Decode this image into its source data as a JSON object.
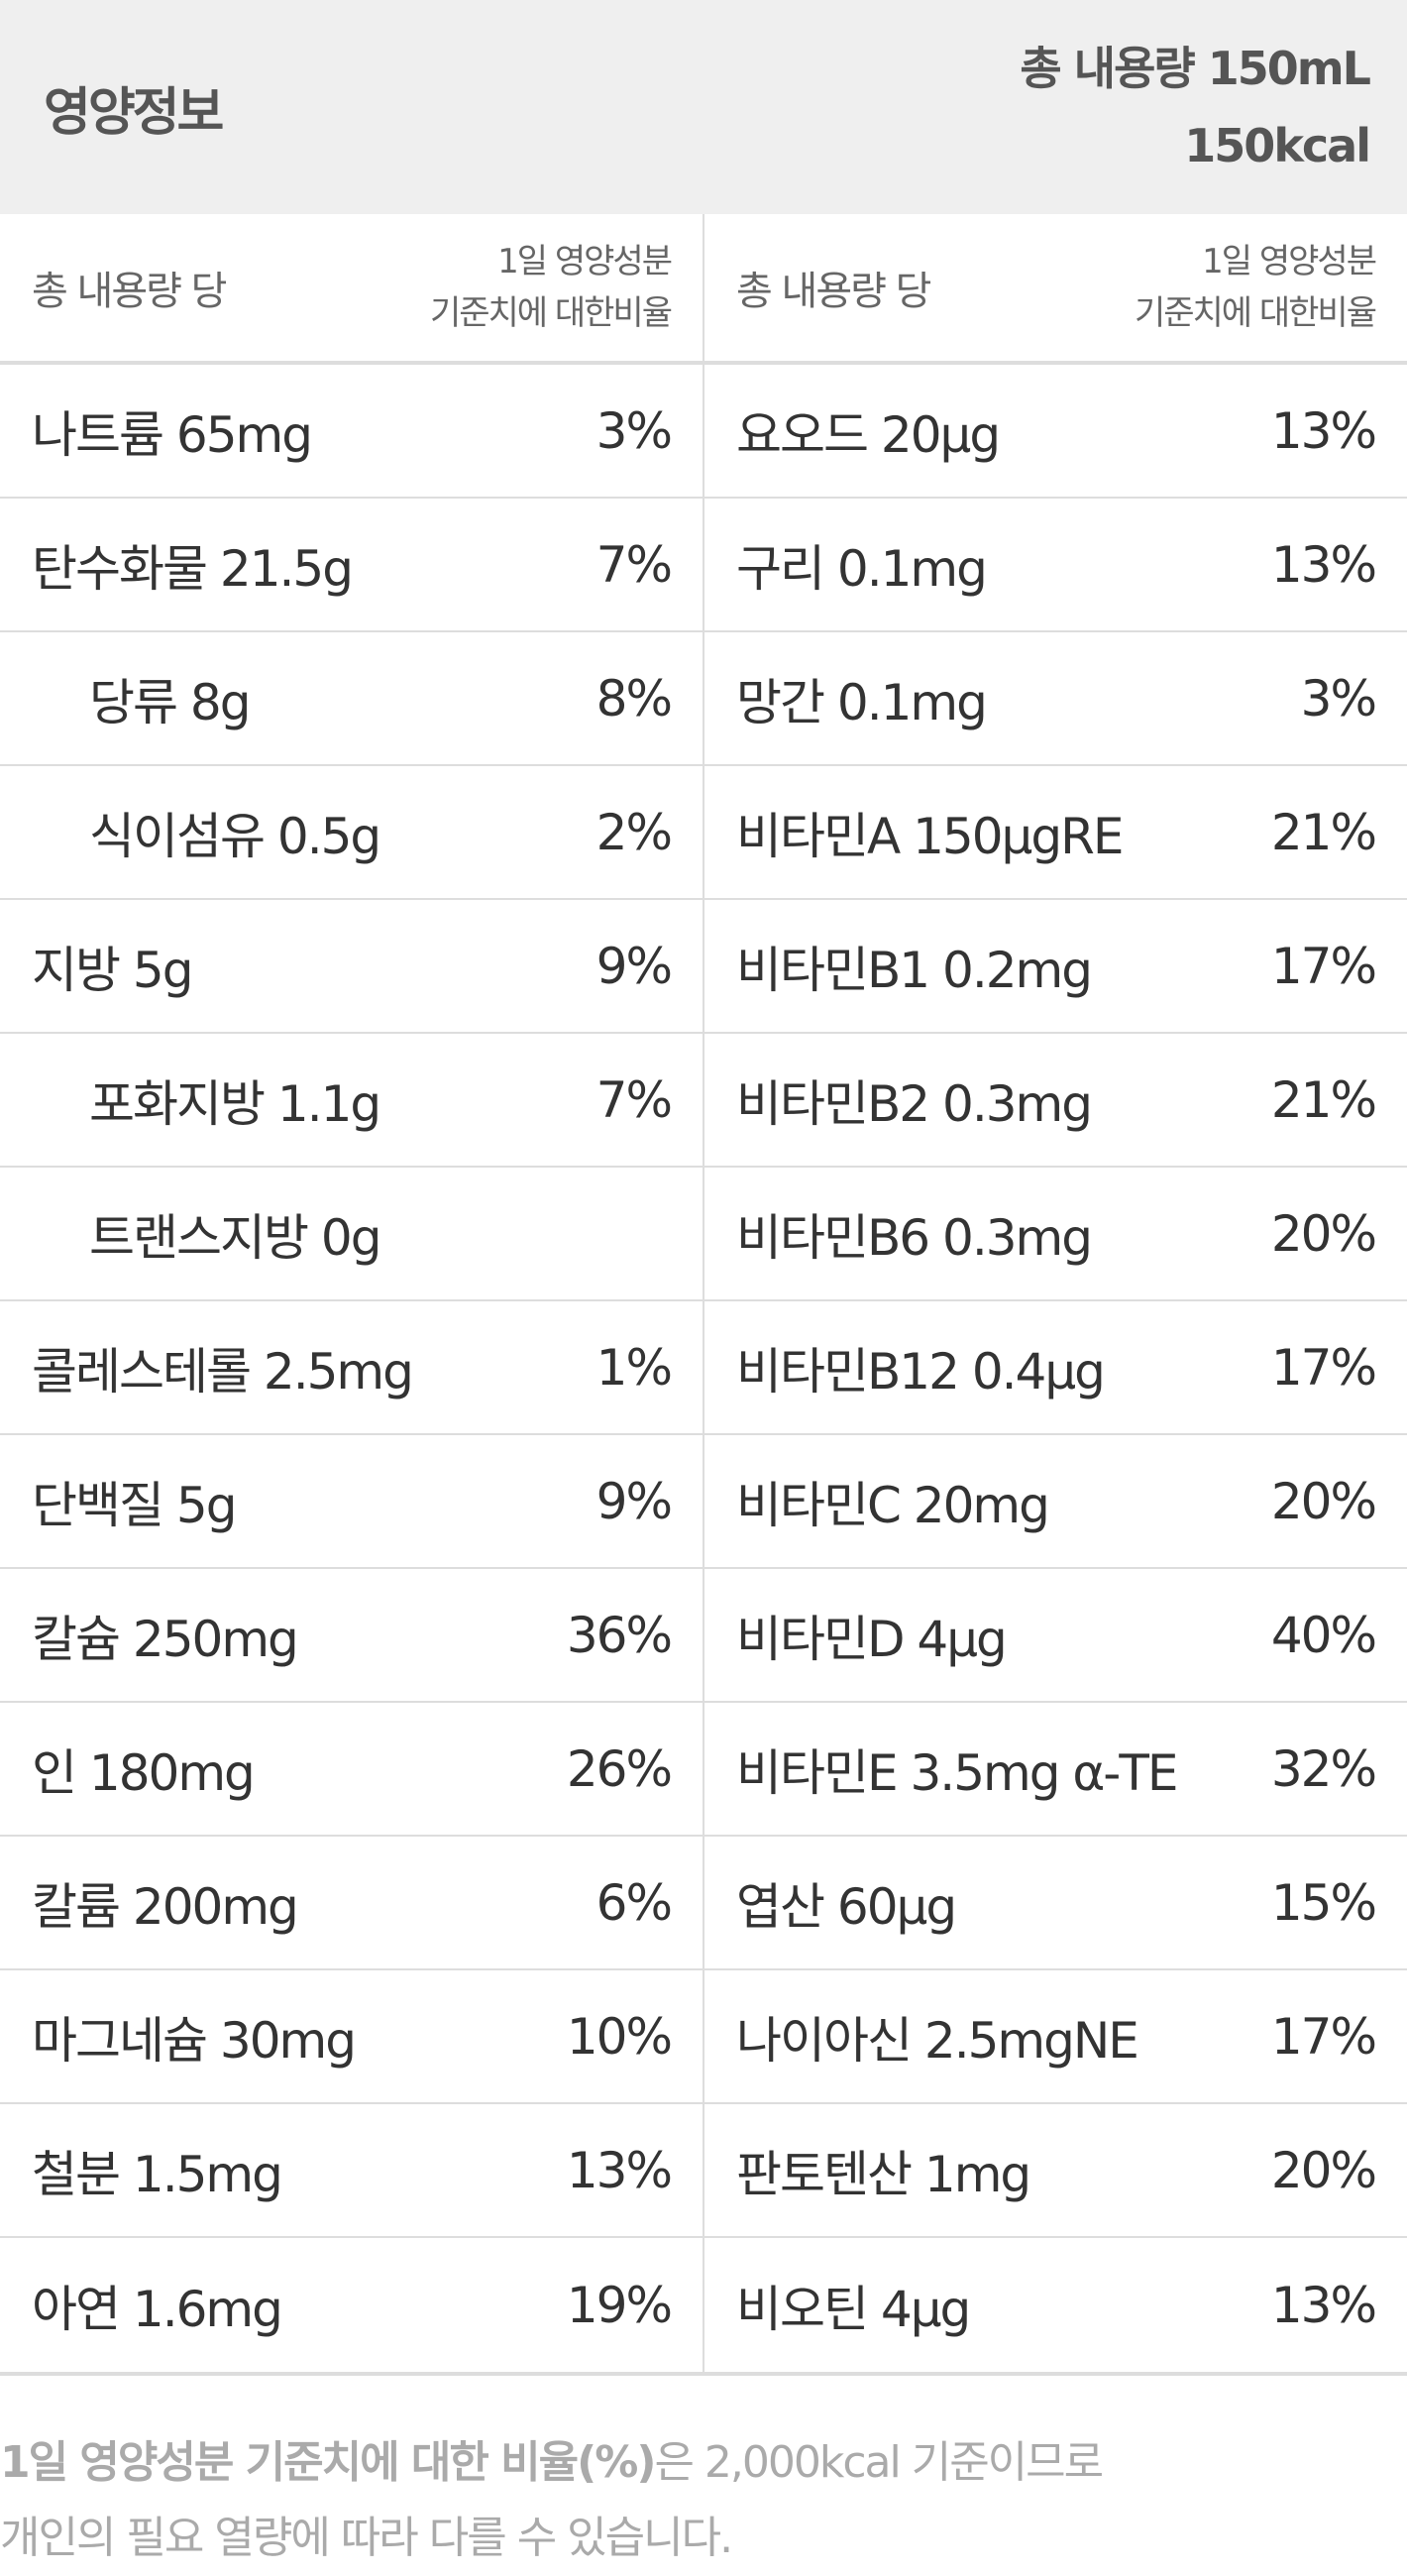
{
  "header": {
    "title": "영양정보",
    "total_volume": "총 내용량 150mL",
    "calories": "150kcal"
  },
  "column_header": {
    "per_total": "총 내용량 당",
    "ratio_line1": "1일 영양성분",
    "ratio_line2": "기준치에 대한비율"
  },
  "left_rows": [
    {
      "name": "나트륨 65mg",
      "pct": "3%",
      "indent": false
    },
    {
      "name": "탄수화물 21.5g",
      "pct": "7%",
      "indent": false
    },
    {
      "name": "당류 8g",
      "pct": "8%",
      "indent": true
    },
    {
      "name": "식이섬유 0.5g",
      "pct": "2%",
      "indent": true
    },
    {
      "name": "지방 5g",
      "pct": "9%",
      "indent": false
    },
    {
      "name": "포화지방 1.1g",
      "pct": "7%",
      "indent": true
    },
    {
      "name": "트랜스지방 0g",
      "pct": "",
      "indent": true
    },
    {
      "name": "콜레스테롤 2.5mg",
      "pct": "1%",
      "indent": false
    },
    {
      "name": "단백질 5g",
      "pct": "9%",
      "indent": false
    },
    {
      "name": "칼슘 250mg",
      "pct": "36%",
      "indent": false
    },
    {
      "name": "인 180mg",
      "pct": "26%",
      "indent": false
    },
    {
      "name": "칼륨 200mg",
      "pct": "6%",
      "indent": false
    },
    {
      "name": "마그네슘 30mg",
      "pct": "10%",
      "indent": false
    },
    {
      "name": "철분 1.5mg",
      "pct": "13%",
      "indent": false
    },
    {
      "name": "아연 1.6mg",
      "pct": "19%",
      "indent": false
    }
  ],
  "right_rows": [
    {
      "name": "요오드 20μg",
      "pct": "13%"
    },
    {
      "name": "구리 0.1mg",
      "pct": "13%"
    },
    {
      "name": "망간 0.1mg",
      "pct": "3%"
    },
    {
      "name": "비타민A 150μgRE",
      "pct": "21%"
    },
    {
      "name": "비타민B1 0.2mg",
      "pct": "17%"
    },
    {
      "name": "비타민B2 0.3mg",
      "pct": "21%"
    },
    {
      "name": "비타민B6 0.3mg",
      "pct": "20%"
    },
    {
      "name": "비타민B12 0.4μg",
      "pct": "17%"
    },
    {
      "name": "비타민C 20mg",
      "pct": "20%"
    },
    {
      "name": "비타민D 4μg",
      "pct": "40%"
    },
    {
      "name": "비타민E 3.5mg α-TE",
      "pct": "32%"
    },
    {
      "name": "엽산 60μg",
      "pct": "15%"
    },
    {
      "name": "나이아신 2.5mgNE",
      "pct": "17%"
    },
    {
      "name": "판토텐산 1mg",
      "pct": "20%"
    },
    {
      "name": "비오틴 4μg",
      "pct": "13%"
    }
  ],
  "footnote": {
    "bold": "1일 영양성분 기준치에 대한 비율(%)",
    "rest": "은 2,000kcal 기준이므로",
    "line2": "개인의 필요 열량에 따라 다를 수 있습니다."
  }
}
